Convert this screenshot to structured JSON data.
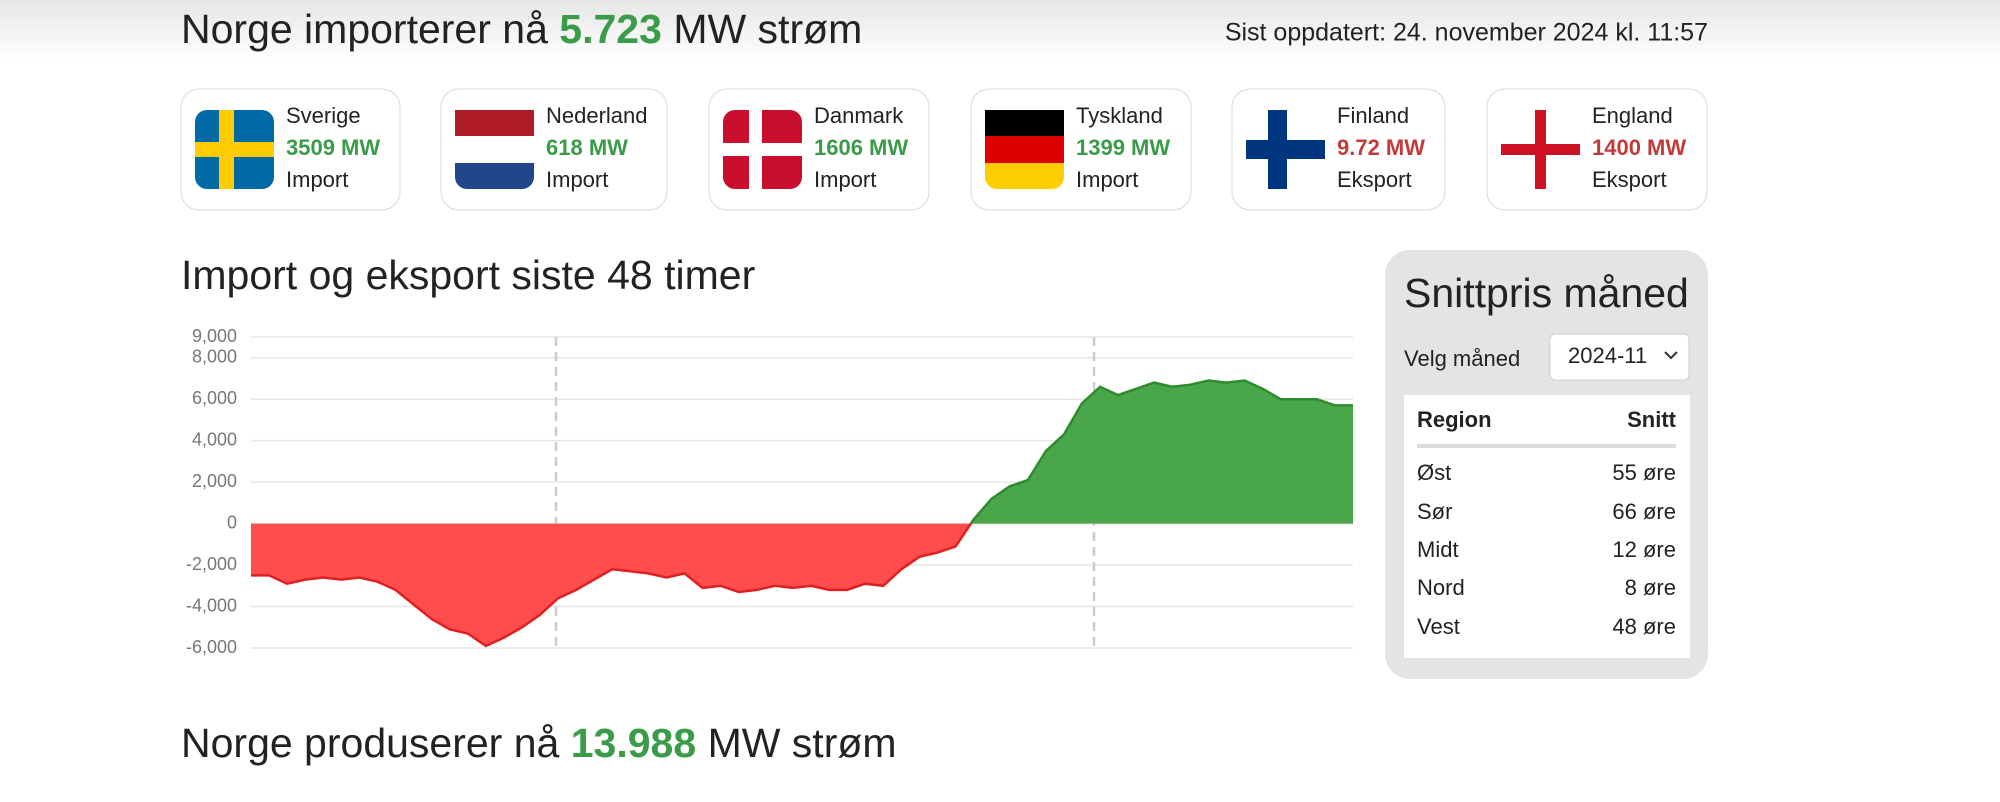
{
  "header": {
    "title_prefix": "Norge importerer nå",
    "title_value": "5.723",
    "title_suffix": "MW strøm",
    "updated": "Sist oppdatert: 24. november 2024 kl. 11:57"
  },
  "countries": [
    {
      "name": "Sverige",
      "amount": "3509 MW",
      "direction": "Import",
      "color": "#3a9b48"
    },
    {
      "name": "Nederland",
      "amount": "618 MW",
      "direction": "Import",
      "color": "#3a9b48"
    },
    {
      "name": "Danmark",
      "amount": "1606 MW",
      "direction": "Import",
      "color": "#3a9b48"
    },
    {
      "name": "Tyskland",
      "amount": "1399 MW",
      "direction": "Import",
      "color": "#3a9b48"
    },
    {
      "name": "Finland",
      "amount": "9.72 MW",
      "direction": "Eksport",
      "color": "#c23b3b"
    },
    {
      "name": "England",
      "amount": "1400 MW",
      "direction": "Eksport",
      "color": "#c23b3b"
    }
  ],
  "chart_data": {
    "type": "area",
    "title": "Import og eksport siste 48 timer",
    "values": [
      -2500,
      -2500,
      -2900,
      -2700,
      -2600,
      -2700,
      -2600,
      -2800,
      -3200,
      -3900,
      -4600,
      -5100,
      -5300,
      -5900,
      -5500,
      -5000,
      -4400,
      -3600,
      -3200,
      -2700,
      -2200,
      -2300,
      -2400,
      -2600,
      -2400,
      -3100,
      -3000,
      -3300,
      -3200,
      -3000,
      -3100,
      -3000,
      -3200,
      -3200,
      -2900,
      -3000,
      -2200,
      -1600,
      -1400,
      -1100,
      200,
      1200,
      1800,
      2100,
      3500,
      4300,
      5800,
      6600,
      6200,
      6500,
      6800,
      6600,
      6700,
      6900,
      6800,
      6900,
      6500,
      6000,
      6000,
      6000,
      5700,
      5700
    ],
    "colors": {
      "positive": "#4aa64a",
      "negative": "#ff4d4d"
    },
    "ylim": [
      -6000,
      9000
    ],
    "yticks": [
      {
        "value": -6000,
        "label": "-6,000"
      },
      {
        "value": -4000,
        "label": "-4,000"
      },
      {
        "value": -2000,
        "label": "-2,000"
      },
      0,
      {
        "value": 2000,
        "label": "2,000"
      },
      {
        "value": 4000,
        "label": "4,000"
      },
      {
        "value": 6000,
        "label": "6,000"
      },
      {
        "value": 8000,
        "label": "8,000"
      },
      {
        "value": 9000,
        "label": "9,000"
      }
    ],
    "grid": true
  },
  "price_panel": {
    "title": "Snittpris måned",
    "select_label": "Velg måned",
    "selected": "2024-11",
    "headers": [
      "Region",
      "Snitt"
    ],
    "rows": [
      [
        "Øst",
        "55 øre"
      ],
      [
        "Sør",
        "66 øre"
      ],
      [
        "Midt",
        "12 øre"
      ],
      [
        "Nord",
        "8 øre"
      ],
      [
        "Vest",
        "48 øre"
      ]
    ]
  },
  "footer": {
    "title_prefix": "Norge produserer nå",
    "title_value": "13.988",
    "title_suffix": "MW strøm"
  }
}
